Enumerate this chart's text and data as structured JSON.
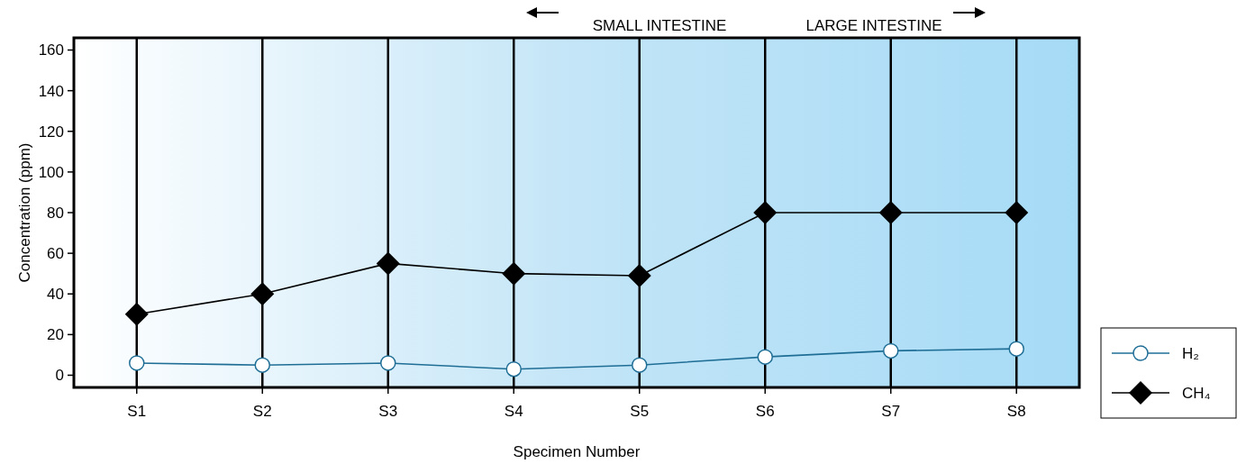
{
  "chart_data": {
    "type": "line",
    "xlabel": "Specimen Number",
    "ylabel": "Concentration (ppm)",
    "categories": [
      "S1",
      "S2",
      "S3",
      "S4",
      "S5",
      "S6",
      "S7",
      "S8"
    ],
    "series": [
      {
        "name": "H₂",
        "color": "#1f6e96",
        "marker": "circle",
        "values": [
          6,
          5,
          6,
          3,
          5,
          9,
          12,
          13
        ]
      },
      {
        "name": "CH₄",
        "color": "#000000",
        "marker": "diamond",
        "values": [
          30,
          40,
          55,
          50,
          49,
          80,
          80,
          80
        ]
      }
    ],
    "ylim": [
      -6,
      166
    ],
    "yticks": [
      0,
      20,
      40,
      60,
      80,
      100,
      120,
      140,
      160
    ],
    "grid": "x",
    "legend": "bottom right",
    "annotations": [
      "SMALL INTESTINE",
      "LARGE INTESTINE"
    ]
  }
}
